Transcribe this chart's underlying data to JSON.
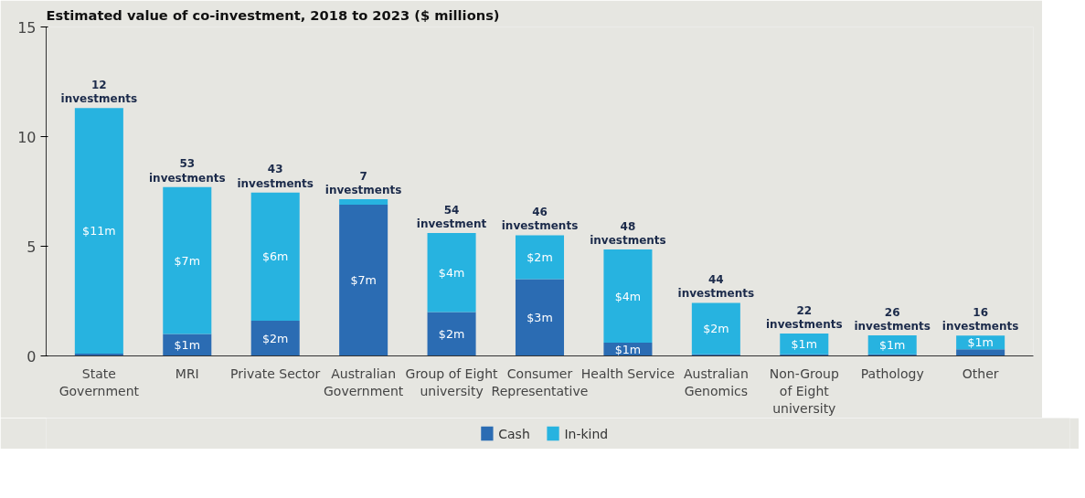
{
  "chart_data": {
    "type": "bar",
    "stacked": true,
    "title": "Estimated value of co-investment, 2018 to 2023 ($ millions)",
    "categories": [
      "State\nGovernment",
      "MRI",
      "Private Sector",
      "Australian\nGovernment",
      "Group of Eight\nuniversity",
      "Consumer\nRepresentative",
      "Health Service",
      "Australian\nGenomics",
      "Non-Group\nof Eight\nuniversity",
      "Pathology",
      "Other"
    ],
    "series": [
      {
        "name": "Cash",
        "color": "#2b6cb3",
        "values": [
          0.1,
          1.0,
          1.6,
          6.9,
          2.0,
          3.5,
          0.6,
          0.07,
          0.07,
          0.07,
          0.3
        ],
        "value_labels": [
          null,
          "$1m",
          "$2m",
          "$7m",
          "$2m",
          "$3m",
          "$1m",
          null,
          null,
          null,
          null
        ]
      },
      {
        "name": "In-kind",
        "color": "#27b3e0",
        "values": [
          11.2,
          6.7,
          5.85,
          0.25,
          3.6,
          2.0,
          4.25,
          2.35,
          0.95,
          0.87,
          0.63
        ],
        "value_labels": [
          "$11m",
          "$7m",
          "$6m",
          null,
          "$4m",
          "$2m",
          "$4m",
          "$2m",
          "$1m",
          "$1m",
          "$1m"
        ]
      }
    ],
    "annotations": [
      {
        "text": "12\ninvestments",
        "x": "State\nGovernment",
        "y": 11.3
      },
      {
        "text": "53\ninvestments",
        "x": "MRI",
        "y": 7.7
      },
      {
        "text": "43\ninvestments",
        "x": "Private Sector",
        "y": 7.45
      },
      {
        "text": "7\ninvestments",
        "x": "Australian\nGovernment",
        "y": 7.15
      },
      {
        "text": "54\ninvestment",
        "x": "Group of Eight\nuniversity",
        "y": 5.6
      },
      {
        "text": "46\ninvestments",
        "x": "Consumer\nRepresentative",
        "y": 5.5
      },
      {
        "text": "48\ninvestments",
        "x": "Health Service",
        "y": 4.85
      },
      {
        "text": "44\ninvestments",
        "x": "Australian\nGenomics",
        "y": 2.42
      },
      {
        "text": "22\ninvestments",
        "x": "Non-Group\nof Eight\nuniversity",
        "y": 1.02
      },
      {
        "text": "26\ninvestments",
        "x": "Pathology",
        "y": 0.94
      },
      {
        "text": "16\ninvestments",
        "x": "Other",
        "y": 0.93
      }
    ],
    "ylim": [
      0,
      15
    ],
    "yticks": [
      0,
      5,
      10,
      15
    ],
    "legend": "bottom"
  }
}
